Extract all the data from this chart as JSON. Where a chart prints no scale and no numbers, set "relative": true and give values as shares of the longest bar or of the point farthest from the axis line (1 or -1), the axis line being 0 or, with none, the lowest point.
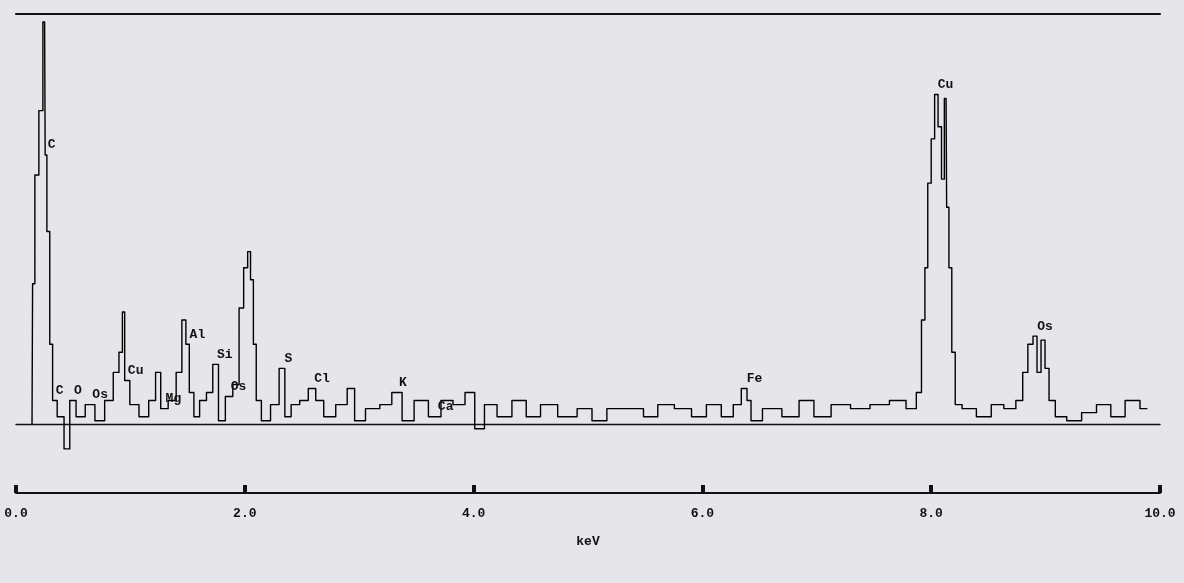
{
  "chart_data": {
    "type": "step",
    "relative": true,
    "xlabel": "keV",
    "marker": "none",
    "color": "#000000",
    "x": [
      0.14,
      0.15,
      0.18,
      0.22,
      0.25,
      0.26,
      0.28,
      0.31,
      0.33,
      0.39,
      0.45,
      0.49,
      0.56,
      0.65,
      0.73,
      0.82,
      0.88,
      0.92,
      0.94,
      0.96,
      1.03,
      1.12,
      1.2,
      1.24,
      1.29,
      1.37,
      1.43,
      1.47,
      1.5,
      1.53,
      1.58,
      1.63,
      1.7,
      1.74,
      1.8,
      1.86,
      1.93,
      1.97,
      2.01,
      2.04,
      2.06,
      2.09,
      2.11,
      2.18,
      2.27,
      2.33,
      2.37,
      2.44,
      2.52,
      2.59,
      2.65,
      2.73,
      2.86,
      2.93,
      2.99,
      3.12,
      3.24,
      3.33,
      3.42,
      3.54,
      3.67,
      3.76,
      3.88,
      3.97,
      4.05,
      4.14,
      4.27,
      4.4,
      4.52,
      4.65,
      4.82,
      4.99,
      5.08,
      5.25,
      5.42,
      5.55,
      5.67,
      5.84,
      5.97,
      6.1,
      6.23,
      6.31,
      6.37,
      6.41,
      6.44,
      6.61,
      6.78,
      6.91,
      7.04,
      7.21,
      7.38,
      7.55,
      7.72,
      7.84,
      7.9,
      7.93,
      7.96,
      7.98,
      8.02,
      8.04,
      8.08,
      8.1,
      8.13,
      8.14,
      8.17,
      8.19,
      8.23,
      8.31,
      8.48,
      8.57,
      8.7,
      8.78,
      8.82,
      8.87,
      8.91,
      8.94,
      8.98,
      9.01,
      9.05,
      9.12,
      9.25,
      9.38,
      9.51,
      9.63,
      9.76,
      9.89
    ],
    "values": [
      0,
      0.35,
      0.62,
      0.78,
      1.0,
      0.67,
      0.48,
      0.2,
      0.06,
      0.02,
      -0.06,
      0.06,
      0.02,
      0.05,
      0.01,
      0.06,
      0.13,
      0.18,
      0.28,
      0.11,
      0.05,
      0.02,
      0.06,
      0.13,
      0.04,
      0.06,
      0.13,
      0.26,
      0.2,
      0.08,
      0.02,
      0.06,
      0.08,
      0.15,
      0.01,
      0.07,
      0.1,
      0.29,
      0.39,
      0.43,
      0.36,
      0.2,
      0.06,
      0.01,
      0.05,
      0.14,
      0.02,
      0.05,
      0.06,
      0.09,
      0.06,
      0.02,
      0.05,
      0.09,
      0.01,
      0.04,
      0.05,
      0.08,
      0.01,
      0.06,
      0.02,
      0.06,
      0.05,
      0.08,
      -0.01,
      0.05,
      0.02,
      0.06,
      0.02,
      0.05,
      0.02,
      0.04,
      0.01,
      0.04,
      0.04,
      0.02,
      0.05,
      0.04,
      0.02,
      0.05,
      0.02,
      0.05,
      0.09,
      0.06,
      0.01,
      0.04,
      0.02,
      0.06,
      0.02,
      0.05,
      0.04,
      0.05,
      0.06,
      0.04,
      0.08,
      0.26,
      0.39,
      0.6,
      0.71,
      0.82,
      0.74,
      0.61,
      0.81,
      0.54,
      0.39,
      0.18,
      0.05,
      0.04,
      0.02,
      0.05,
      0.04,
      0.06,
      0.13,
      0.2,
      0.22,
      0.13,
      0.21,
      0.14,
      0.06,
      0.02,
      0.01,
      0.03,
      0.05,
      0.02,
      0.06,
      0.04
    ],
    "xlim": [
      0,
      10
    ],
    "xticks": [
      {
        "value": 0,
        "label": "0.0"
      },
      {
        "value": 2,
        "label": "2.0"
      },
      {
        "value": 4,
        "label": "4.0"
      },
      {
        "value": 6,
        "label": "6.0"
      },
      {
        "value": 8,
        "label": "8.0"
      },
      {
        "value": 10,
        "label": "10.0"
      }
    ],
    "annotations": [
      {
        "text": "C",
        "x": 0.26,
        "y": 0.67
      },
      {
        "text": "C",
        "x": 0.33,
        "y": 0.06
      },
      {
        "text": "O",
        "x": 0.49,
        "y": 0.06
      },
      {
        "text": "Os",
        "x": 0.65,
        "y": 0.05
      },
      {
        "text": "Cu",
        "x": 0.96,
        "y": 0.11
      },
      {
        "text": "Mg",
        "x": 1.29,
        "y": 0.04
      },
      {
        "text": "Al",
        "x": 1.5,
        "y": 0.2
      },
      {
        "text": "Si",
        "x": 1.74,
        "y": 0.15
      },
      {
        "text": "Os",
        "x": 1.86,
        "y": 0.07
      },
      {
        "text": "S",
        "x": 2.33,
        "y": 0.14
      },
      {
        "text": "Cl",
        "x": 2.59,
        "y": 0.09
      },
      {
        "text": "K",
        "x": 3.33,
        "y": 0.08
      },
      {
        "text": "Ca",
        "x": 3.67,
        "y": 0.02
      },
      {
        "text": "Fe",
        "x": 6.37,
        "y": 0.09
      },
      {
        "text": "Cu",
        "x": 8.04,
        "y": 0.82
      },
      {
        "text": "Os",
        "x": 8.91,
        "y": 0.22
      }
    ]
  }
}
